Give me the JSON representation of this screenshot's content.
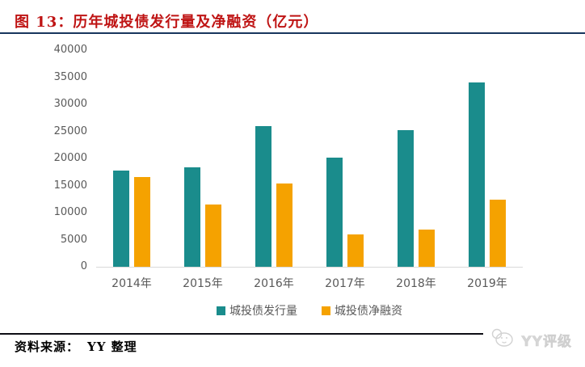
{
  "header": {
    "title": "图 13：历年城投债发行量及净融资（亿元）"
  },
  "chart_data": {
    "type": "bar",
    "title": "历年城投债发行量及净融资（亿元）",
    "categories": [
      "2014年",
      "2015年",
      "2016年",
      "2017年",
      "2018年",
      "2019年"
    ],
    "series": [
      {
        "name": "城投债发行量",
        "color": "#1a8c8c",
        "values": [
          17700,
          18400,
          25900,
          20100,
          25200,
          34100
        ]
      },
      {
        "name": "城投债净融资",
        "color": "#f5a200",
        "values": [
          16500,
          11500,
          15300,
          6000,
          6800,
          12400
        ]
      }
    ],
    "ylim": [
      0,
      40000
    ],
    "ytick_step": 5000,
    "yticks": [
      "40000",
      "35000",
      "30000",
      "25000",
      "20000",
      "15000",
      "10000",
      "5000",
      "0"
    ],
    "grid": false,
    "legend_position": "bottom",
    "axis_line_color": "#d9d9d9",
    "tick_label_color": "#595959"
  },
  "footer": {
    "source_label": "资料来源：",
    "source_value": "YY 整理",
    "watermark_text": "YY评级"
  },
  "colors": {
    "title_red": "#bf1414",
    "title_rule_navy": "#17365d",
    "footer_rule_black": "#0d0d14",
    "issuance_teal": "#1a8c8c",
    "net_financing_orange": "#f5a200",
    "watermark_gray": "#d6d6d6"
  }
}
